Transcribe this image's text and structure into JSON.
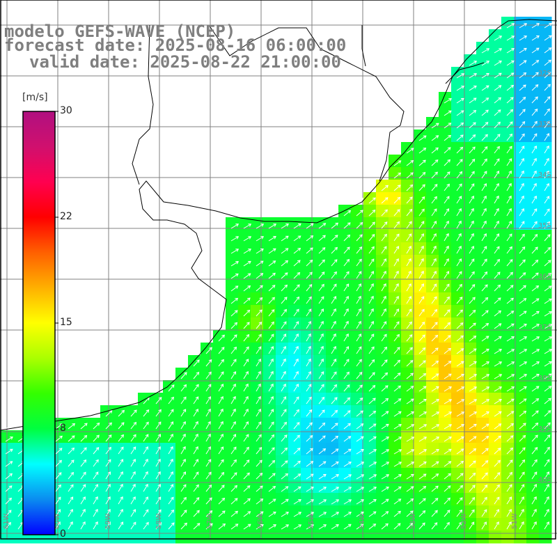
{
  "title": {
    "line1": "modelo GEFS-WAVE (NCEP)",
    "line2": "forecast date: 2025-08-16 06:00:00",
    "line3": "valid date: 2025-08-22 21:00:00"
  },
  "colorbar": {
    "unit": "[m/s]",
    "ticks": [
      "30",
      "22",
      "15",
      "8",
      "0"
    ],
    "colors": [
      "#0000ff",
      "#0a8cf0",
      "#00ffff",
      "#00ff40",
      "#33ff00",
      "#aaff00",
      "#ffff00",
      "#ffb000",
      "#ff6000",
      "#ff0000",
      "#ff0050",
      "#d0106e",
      "#b01080"
    ]
  },
  "lat_labels": [
    "32S",
    "33S",
    "34S",
    "35S",
    "36S",
    "37S",
    "38S",
    "39S",
    "40S"
  ],
  "lon_labels": [
    "61W",
    "60W",
    "59W",
    "58W",
    "57W",
    "56W",
    "55W",
    "54W",
    "53W",
    "52W",
    "51W"
  ],
  "colors": {
    "land": "#ffffff",
    "grid": "#808080",
    "coast": "#000000",
    "arrows": "#ffffff",
    "title": "#7f7f7f"
  }
}
